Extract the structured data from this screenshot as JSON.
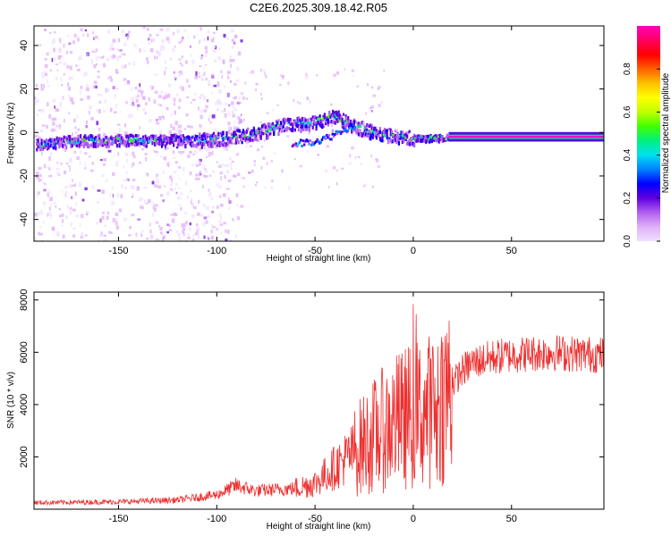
{
  "title": "C2E6.2025.309.18.42.R05",
  "chart_data": [
    {
      "type": "heatmap",
      "name": "spectrogram",
      "xlabel": "Height of straight line (km)",
      "ylabel": "Frequency (Hz)",
      "xlim": [
        -193,
        97
      ],
      "ylim": [
        -50,
        49
      ],
      "xticks": [
        -150,
        -100,
        -50,
        0,
        50
      ],
      "yticks": [
        -40,
        -20,
        0,
        20,
        40
      ],
      "colorbar": {
        "label": "Normalized spectral amplitude",
        "range": [
          0,
          1
        ],
        "ticks": [
          "0.0",
          "0.2",
          "0.4",
          "0.6",
          "0.8"
        ],
        "colors": [
          "#f0e0ff",
          "#e0b0f8",
          "#b060f0",
          "#6000e0",
          "#0000ff",
          "#0080ff",
          "#00e0f0",
          "#00f080",
          "#40ff00",
          "#c0ff00",
          "#ffff00",
          "#ffc000",
          "#ff6000",
          "#ff0000",
          "#ff0060",
          "#ff00c0"
        ]
      },
      "ridge": {
        "heights": [
          -190,
          -170,
          -150,
          -130,
          -110,
          -95,
          -80,
          -70,
          -62,
          -55,
          -48,
          -40,
          -32,
          -25,
          -18,
          -10,
          0,
          10,
          20,
          40,
          60,
          80
        ],
        "freqs": [
          -5,
          -3,
          -3,
          -3,
          -3,
          -2,
          0,
          3,
          5,
          4,
          6,
          8,
          4,
          2,
          0,
          -1,
          -2,
          -2,
          -2,
          -2,
          -2,
          -2
        ]
      },
      "secondary_branch": {
        "heights": [
          -62,
          -55,
          -48,
          -42,
          -36,
          -30
        ],
        "freqs": [
          -5,
          -4,
          -3,
          -1,
          2,
          4
        ]
      },
      "stable_tone": {
        "x_range": [
          18,
          97
        ],
        "freq": -2,
        "amplitude": 0.95
      }
    },
    {
      "type": "line",
      "name": "snr",
      "xlabel": "Height of straight line (km)",
      "ylabel": "SNR (10 * v/v)",
      "xlim": [
        -193,
        97
      ],
      "ylim": [
        0,
        8300
      ],
      "xticks": [
        -150,
        -100,
        -50,
        0,
        50
      ],
      "yticks": [
        2000,
        4000,
        6000,
        8000
      ],
      "color": "#ee3030",
      "envelope": {
        "x": [
          -193,
          -150,
          -120,
          -100,
          -90,
          -80,
          -60,
          -50,
          -40,
          -30,
          -20,
          -10,
          0,
          10,
          15,
          20,
          25,
          30,
          40,
          50,
          60,
          70,
          80,
          97
        ],
        "y": [
          250,
          280,
          350,
          550,
          900,
          700,
          800,
          1000,
          1600,
          2200,
          2800,
          3300,
          3600,
          3800,
          4300,
          4800,
          5300,
          5600,
          5800,
          5900,
          5950,
          6000,
          5950,
          5900
        ]
      }
    }
  ]
}
